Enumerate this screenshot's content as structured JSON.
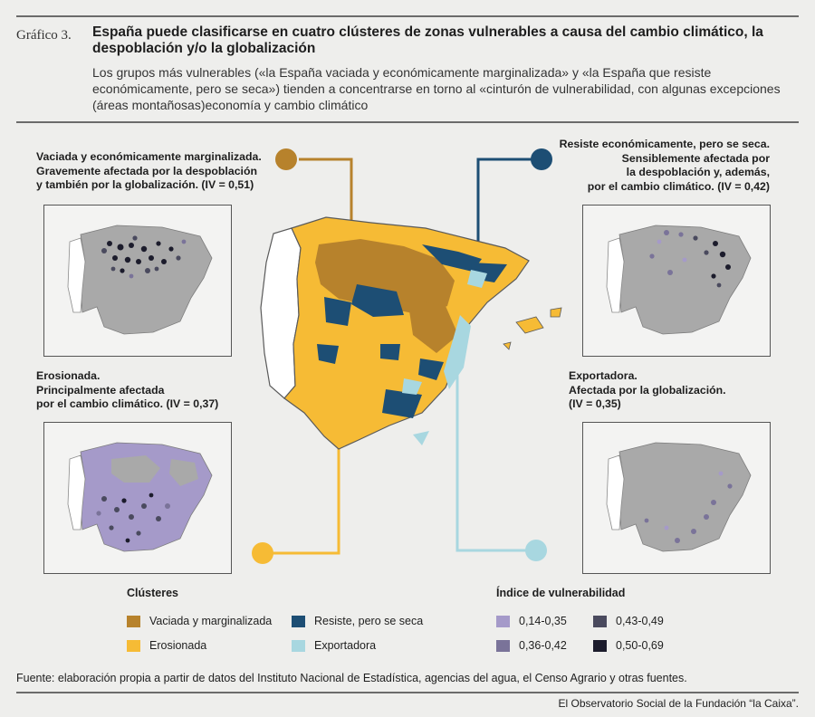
{
  "header": {
    "figure_tag": "Gráfico 3.",
    "title": "España puede clasificarse en cuatro clústeres de zonas vulnerables a causa del cambio climático, la despoblación y/o la globalización",
    "subtitle": "Los grupos más vulnerables («la España vaciada y económicamente marginalizada» y «la España que resiste económicamente, pero se seca») tienden a concentrarse en torno al «cinturón de vulnerabilidad, con algunas excepciones (áreas montañosas)economía y cambio climático"
  },
  "clusters": {
    "vaciada": {
      "text": "Vaciada y económicamente marginalizada.\nGravemente afectada por la despoblación\ny también por la globalización. (IV = 0,51)",
      "color": "#b7822c"
    },
    "resiste": {
      "text": "Resiste económicamente, pero se seca.\nSensiblemente afectada por\nla despoblación y, además,\npor el cambio climático. (IV = 0,42)",
      "color": "#1d4e74"
    },
    "erosionada": {
      "text": "Erosionada.\nPrincipalmente afectada\npor el cambio climático. (IV = 0,37)",
      "color": "#f6bb35"
    },
    "exportadora": {
      "text": "Exportadora.\nAfectada por la globalización.\n(IV = 0,35)",
      "color": "#a8d7e0"
    }
  },
  "legend": {
    "clusters_title": "Clústeres",
    "clusters": [
      {
        "label": "Vaciada y marginalizada",
        "color": "#b7822c"
      },
      {
        "label": "Resiste, pero se seca",
        "color": "#1d4e74"
      },
      {
        "label": "Erosionada",
        "color": "#f6bb35"
      },
      {
        "label": "Exportadora",
        "color": "#a8d7e0"
      }
    ],
    "index_title": "Índice de vulnerabilidad",
    "index": [
      {
        "label": "0,14-0,35",
        "color": "#a59ac9"
      },
      {
        "label": "0,43-0,49",
        "color": "#4a4a5e"
      },
      {
        "label": "0,36-0,42",
        "color": "#7a7399"
      },
      {
        "label": "0,50-0,69",
        "color": "#1c1c2c"
      }
    ]
  },
  "colors": {
    "background": "#eeeeec",
    "inactive_land": "#a9a9a9",
    "outline": "#5a5a5a"
  },
  "footer": {
    "source": "Fuente: elaboración propia a partir de datos del Instituto Nacional de Estadística, agencias del agua, el Censo Agrario y otras fuentes.",
    "credit": "El Observatorio Social de la Fundación “la Caixa”."
  }
}
